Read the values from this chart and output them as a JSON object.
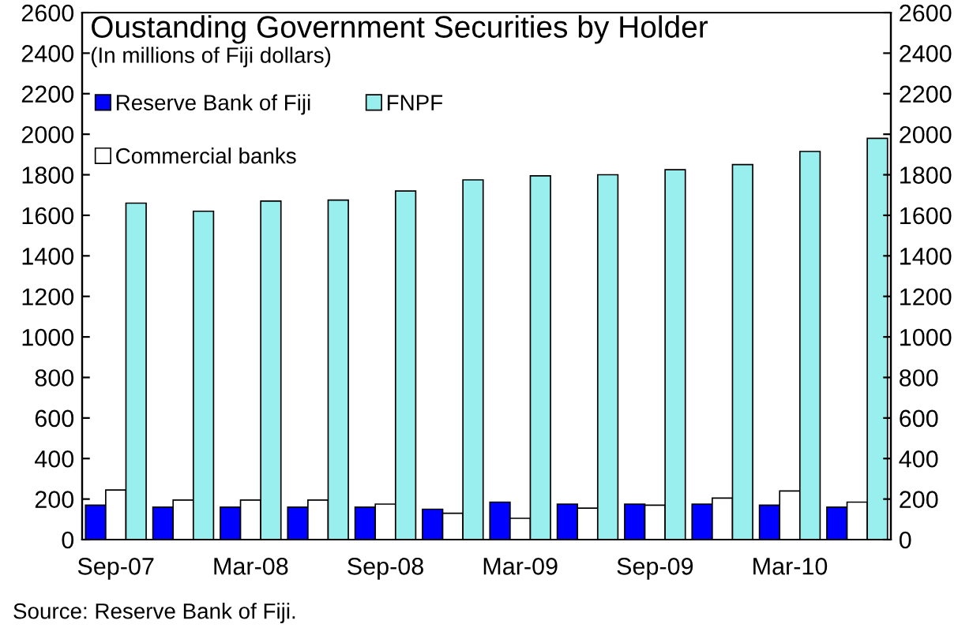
{
  "chart_data": {
    "type": "bar",
    "title": "Oustanding Government Securities by Holder",
    "subtitle": "(In millions of Fiji dollars)",
    "categories": [
      "Sep-07",
      null,
      "Mar-08",
      null,
      "Sep-08",
      null,
      "Mar-09",
      null,
      "Sep-09",
      null,
      "Mar-10",
      null
    ],
    "series": [
      {
        "name": "Reserve Bank of Fiji",
        "color": "#0000ff",
        "values": [
          170,
          160,
          160,
          160,
          160,
          150,
          185,
          175,
          175,
          175,
          170,
          160
        ]
      },
      {
        "name": "Commercial banks",
        "color": "#ffffff",
        "values": [
          245,
          195,
          195,
          195,
          175,
          130,
          105,
          155,
          170,
          205,
          240,
          185
        ]
      },
      {
        "name": "FNPF",
        "color": "#99eeee",
        "values": [
          1660,
          1620,
          1670,
          1675,
          1720,
          1775,
          1795,
          1800,
          1825,
          1850,
          1915,
          1980
        ]
      }
    ],
    "ylim": [
      0,
      2600
    ],
    "yticks": [
      0,
      200,
      400,
      600,
      800,
      1000,
      1200,
      1400,
      1600,
      1800,
      2000,
      2200,
      2400,
      2600
    ],
    "y2lim": [
      0,
      2600
    ],
    "y2ticks": [
      0,
      200,
      400,
      600,
      800,
      1000,
      1200,
      1400,
      1600,
      1800,
      2000,
      2200,
      2400,
      2600
    ],
    "grid": false,
    "legend": "top left",
    "annotations": [
      "Source: Reserve Bank of Fiji."
    ]
  }
}
